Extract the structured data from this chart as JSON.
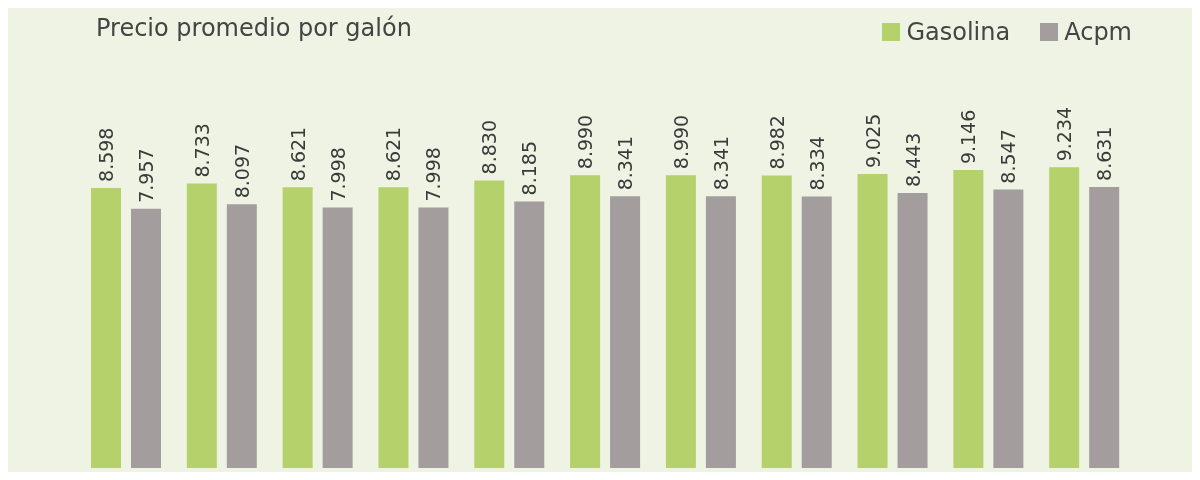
{
  "chart_data": {
    "type": "bar",
    "title": "Precio promedio por galón",
    "categories": [
      null,
      null,
      null,
      null,
      null,
      null,
      null,
      null,
      null,
      null,
      null
    ],
    "series": [
      {
        "name": "Gasolina",
        "color": "#b5d16b",
        "values": [
          8598,
          8733,
          8621,
          8621,
          8830,
          8990,
          8990,
          8982,
          9025,
          9146,
          9234
        ],
        "value_labels": [
          "8.598",
          "8.733",
          "8.621",
          "8.621",
          "8.830",
          "8.990",
          "8.990",
          "8.982",
          "9.025",
          "9.146",
          "9.234"
        ]
      },
      {
        "name": "Acpm",
        "color": "#a39d9e",
        "values": [
          7957,
          8097,
          7998,
          7998,
          8185,
          8341,
          8341,
          8334,
          8443,
          8547,
          8631
        ],
        "value_labels": [
          "7.957",
          "8.097",
          "7.998",
          "7.998",
          "8.185",
          "8.341",
          "8.341",
          "8.334",
          "8.443",
          "8.547",
          "8.631"
        ]
      }
    ],
    "legend": "top right"
  }
}
